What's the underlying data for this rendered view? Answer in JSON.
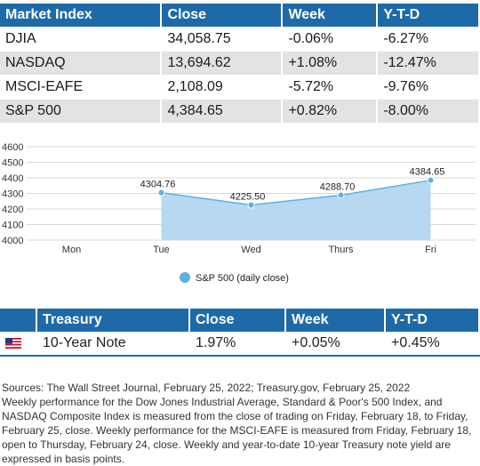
{
  "market": {
    "headers": [
      "Market Index",
      "Close",
      "Week",
      "Y-T-D"
    ],
    "rows": [
      [
        "DJIA",
        "34,058.75",
        "-0.06%",
        "-6.27%"
      ],
      [
        "NASDAQ",
        "13,694.62",
        "+1.08%",
        "-12.47%"
      ],
      [
        "MSCI-EAFE",
        "2,108.09",
        "-5.72%",
        "-9.76%"
      ],
      [
        "S&P 500",
        "4,384.65",
        "+0.82%",
        "-8.00%"
      ]
    ]
  },
  "chart_data": {
    "type": "area",
    "categories": [
      "Mon",
      "Tue",
      "Wed",
      "Thurs",
      "Fri"
    ],
    "y_ticks": [
      4000,
      4100,
      4200,
      4300,
      4400,
      4500,
      4600
    ],
    "ylim": [
      4000,
      4600
    ],
    "grid": true,
    "legend_position": "bottom",
    "series": [
      {
        "name": "S&P 500 (daily close)",
        "values": [
          null,
          4304.76,
          4225.5,
          4288.7,
          4384.65
        ],
        "labels": [
          "",
          "4304.76",
          "4225.50",
          "4288.70",
          "4384.65"
        ],
        "color": "#5db0e3",
        "fill": "#b6d8f0"
      }
    ]
  },
  "treasury": {
    "headers": [
      "",
      "Treasury",
      "Close",
      "Week",
      "Y-T-D"
    ],
    "row": [
      "10-Year Note",
      "1.97%",
      "+0.05%",
      "+0.45%"
    ],
    "flag_icon": "us-flag-icon"
  },
  "footnote": {
    "sources": "Sources: The Wall Street Journal, February 25, 2022; Treasury.gov, February 25, 2022",
    "text": "Weekly performance for the Dow Jones Industrial Average, Standard & Poor's 500 Index, and NASDAQ Composite Index is measured from the close of trading on Friday, February 18, to Friday, February 25, close. Weekly performance for the MSCI-EAFE is measured from Friday, February 18, open to Thursday, February 24, close. Weekly and year-to-date 10-year Treasury note yield are expressed in basis points."
  },
  "colors": {
    "header": "#1e6aa8",
    "stripe": "#e3e3e3",
    "series": "#5db0e3"
  }
}
